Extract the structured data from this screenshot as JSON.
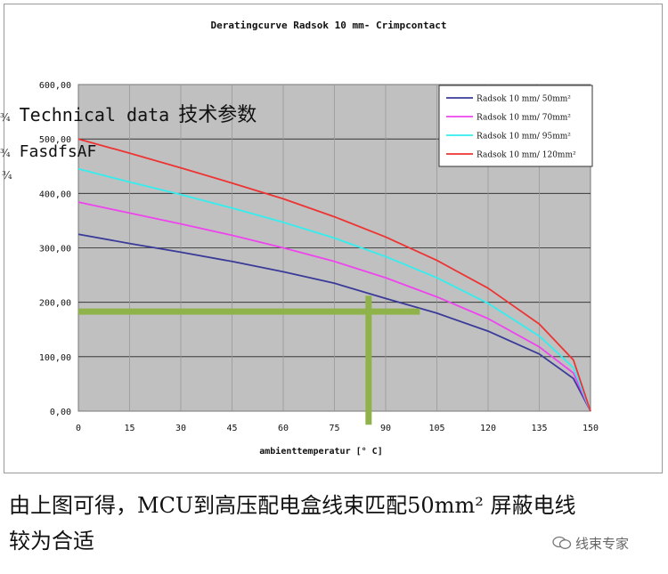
{
  "chart_data": {
    "type": "line",
    "title": "Deratingcurve Radsok 10 mm- Crimpcontact",
    "xlabel": "ambienttemperatur [° C]",
    "ylabel": "",
    "xlim": [
      0,
      150
    ],
    "ylim": [
      0,
      600
    ],
    "x_ticks": [
      "0",
      "15",
      "30",
      "45",
      "60",
      "75",
      "90",
      "105",
      "120",
      "135",
      "150"
    ],
    "y_ticks": [
      "0,00",
      "100,00",
      "200,00",
      "300,00",
      "400,00",
      "500,00",
      "600,00"
    ],
    "grid": true,
    "legend_position": "top-right",
    "x": [
      0,
      15,
      30,
      45,
      60,
      75,
      90,
      105,
      120,
      135,
      145,
      150
    ],
    "series": [
      {
        "name": "Radsok 10 mm/ 50mm²",
        "color": "#3a3a99",
        "values": [
          325,
          308,
          292,
          275,
          256,
          235,
          207,
          180,
          147,
          105,
          60,
          0
        ]
      },
      {
        "name": "Radsok 10 mm/ 70mm²",
        "color": "#ee44ee",
        "values": [
          384,
          364,
          344,
          323,
          300,
          275,
          245,
          210,
          170,
          118,
          70,
          0
        ]
      },
      {
        "name": "Radsok 10 mm/ 95mm²",
        "color": "#33eeee",
        "values": [
          445,
          421,
          398,
          373,
          347,
          318,
          284,
          245,
          198,
          138,
          80,
          0
        ]
      },
      {
        "name": "Radsok 10 mm/ 120mm²",
        "color": "#ee3333",
        "values": [
          500,
          474,
          447,
          419,
          390,
          357,
          320,
          277,
          226,
          160,
          94,
          0
        ]
      }
    ],
    "annotation_lines_color": "#8fb34a"
  },
  "overlay": {
    "technical": "Technical data",
    "technical_cn": "技术参数",
    "fasd": "FasdfsAF",
    "bullet": "¾"
  },
  "caption": {
    "line1": "由上图可得，MCU到高压配电盒线束匹配50mm² 屏蔽电线",
    "line2": "较为合适"
  },
  "watermark": "线束专家"
}
